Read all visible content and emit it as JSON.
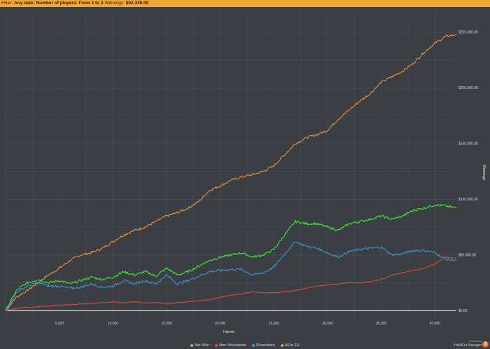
{
  "filter": {
    "prefix": "Filter:",
    "text": "Any date; Number of players: From 2 to 3",
    "winnings_label": "Winnings:",
    "winnings_value": "$92,326.00"
  },
  "brand": {
    "powered_by": "Powered by",
    "name": "HoldEm Manager",
    "logo": "2"
  },
  "colors": {
    "background": "#3b3f44",
    "filter_bar": "#f2a63a",
    "grid": "#4a4f55",
    "net_won": "#3ef23a",
    "non_showdown": "#e84a3c",
    "showdown": "#3d9ad9",
    "all_in_ev": "#f0983a",
    "zero_line": "#ffffff"
  },
  "chart_data": {
    "type": "line",
    "title": "",
    "xlabel": "Hands",
    "ylabel": "Winnings",
    "xlim": [
      0,
      42000
    ],
    "ylim": [
      -8000,
      270000
    ],
    "x_ticks": [
      5000,
      10000,
      15000,
      20000,
      25000,
      30000,
      35000,
      40000
    ],
    "x_tick_labels": [
      "5,000",
      "10,000",
      "15,000",
      "20,000",
      "25,000",
      "30,000",
      "35,000",
      "40,000"
    ],
    "y_ticks": [
      0,
      50000,
      100000,
      150000,
      200000,
      250000
    ],
    "y_tick_labels": [
      "$0.00",
      "$50,000.00",
      "$100,000.00",
      "$150,000.00",
      "$200,000.00",
      "$250,000.00"
    ],
    "y_axis_position": "right",
    "grid": true,
    "legend_position": "bottom-center",
    "series": [
      {
        "name": "Net Won",
        "color": "#3ef23a",
        "points": [
          [
            0,
            0
          ],
          [
            1000,
            18000
          ],
          [
            2000,
            25000
          ],
          [
            3000,
            28000
          ],
          [
            4000,
            25000
          ],
          [
            5000,
            27000
          ],
          [
            6000,
            24000
          ],
          [
            7000,
            27000
          ],
          [
            8000,
            30000
          ],
          [
            9000,
            28000
          ],
          [
            10000,
            30000
          ],
          [
            11000,
            35000
          ],
          [
            12000,
            32000
          ],
          [
            13000,
            35000
          ],
          [
            14000,
            31000
          ],
          [
            15000,
            38000
          ],
          [
            16000,
            32000
          ],
          [
            17000,
            35000
          ],
          [
            18000,
            40000
          ],
          [
            19000,
            45000
          ],
          [
            20000,
            48000
          ],
          [
            21000,
            50000
          ],
          [
            22000,
            52000
          ],
          [
            23000,
            48000
          ],
          [
            24000,
            50000
          ],
          [
            25000,
            55000
          ],
          [
            26000,
            68000
          ],
          [
            27000,
            80000
          ],
          [
            28000,
            78000
          ],
          [
            29000,
            78000
          ],
          [
            30000,
            75000
          ],
          [
            31000,
            72000
          ],
          [
            32000,
            78000
          ],
          [
            33000,
            80000
          ],
          [
            34000,
            82000
          ],
          [
            35000,
            85000
          ],
          [
            36000,
            82000
          ],
          [
            37000,
            85000
          ],
          [
            38000,
            90000
          ],
          [
            39000,
            92000
          ],
          [
            40000,
            95000
          ],
          [
            41000,
            94000
          ],
          [
            42000,
            92000
          ]
        ]
      },
      {
        "name": "Non Showdown",
        "color": "#e84a3c",
        "points": [
          [
            0,
            0
          ],
          [
            1000,
            2000
          ],
          [
            2000,
            3000
          ],
          [
            3000,
            3500
          ],
          [
            4000,
            4000
          ],
          [
            5000,
            5000
          ],
          [
            6000,
            5500
          ],
          [
            7000,
            6000
          ],
          [
            8000,
            6500
          ],
          [
            9000,
            7000
          ],
          [
            10000,
            8000
          ],
          [
            11000,
            7000
          ],
          [
            12000,
            8000
          ],
          [
            13000,
            7000
          ],
          [
            14000,
            7500
          ],
          [
            15000,
            6000
          ],
          [
            16000,
            7000
          ],
          [
            17000,
            8000
          ],
          [
            18000,
            9000
          ],
          [
            19000,
            10000
          ],
          [
            20000,
            12000
          ],
          [
            21000,
            14000
          ],
          [
            22000,
            15000
          ],
          [
            23000,
            17000
          ],
          [
            24000,
            16000
          ],
          [
            25000,
            16000
          ],
          [
            26000,
            17000
          ],
          [
            27000,
            18000
          ],
          [
            28000,
            20000
          ],
          [
            29000,
            22000
          ],
          [
            30000,
            23000
          ],
          [
            31000,
            24000
          ],
          [
            32000,
            25000
          ],
          [
            33000,
            25000
          ],
          [
            34000,
            26000
          ],
          [
            35000,
            28000
          ],
          [
            36000,
            32000
          ],
          [
            37000,
            34000
          ],
          [
            38000,
            36000
          ],
          [
            39000,
            38000
          ],
          [
            40000,
            42000
          ],
          [
            41000,
            48000
          ],
          [
            42000,
            47000
          ]
        ]
      },
      {
        "name": "Showdown",
        "color": "#3d9ad9",
        "points": [
          [
            0,
            0
          ],
          [
            1000,
            16000
          ],
          [
            2000,
            22000
          ],
          [
            3000,
            25000
          ],
          [
            4000,
            22000
          ],
          [
            5000,
            22000
          ],
          [
            6000,
            20000
          ],
          [
            7000,
            21000
          ],
          [
            8000,
            24000
          ],
          [
            9000,
            21000
          ],
          [
            10000,
            22000
          ],
          [
            11000,
            27000
          ],
          [
            12000,
            24000
          ],
          [
            13000,
            27000
          ],
          [
            14000,
            24000
          ],
          [
            15000,
            32000
          ],
          [
            16000,
            24000
          ],
          [
            17000,
            27000
          ],
          [
            18000,
            31000
          ],
          [
            19000,
            35000
          ],
          [
            20000,
            36000
          ],
          [
            21000,
            37000
          ],
          [
            22000,
            37000
          ],
          [
            23000,
            32000
          ],
          [
            24000,
            34000
          ],
          [
            25000,
            39000
          ],
          [
            26000,
            51000
          ],
          [
            27000,
            62000
          ],
          [
            28000,
            58000
          ],
          [
            29000,
            56000
          ],
          [
            30000,
            52000
          ],
          [
            31000,
            48000
          ],
          [
            32000,
            53000
          ],
          [
            33000,
            55000
          ],
          [
            34000,
            56000
          ],
          [
            35000,
            57000
          ],
          [
            36000,
            50000
          ],
          [
            37000,
            51000
          ],
          [
            38000,
            54000
          ],
          [
            39000,
            54000
          ],
          [
            40000,
            52000
          ],
          [
            41000,
            46000
          ],
          [
            42000,
            45000
          ]
        ]
      },
      {
        "name": "All-In EV",
        "color": "#f0983a",
        "points": [
          [
            0,
            0
          ],
          [
            1000,
            12000
          ],
          [
            2000,
            18000
          ],
          [
            3000,
            25000
          ],
          [
            4000,
            32000
          ],
          [
            5000,
            38000
          ],
          [
            6000,
            45000
          ],
          [
            7000,
            50000
          ],
          [
            8000,
            52000
          ],
          [
            9000,
            56000
          ],
          [
            10000,
            62000
          ],
          [
            11000,
            68000
          ],
          [
            12000,
            72000
          ],
          [
            13000,
            75000
          ],
          [
            14000,
            80000
          ],
          [
            15000,
            85000
          ],
          [
            16000,
            88000
          ],
          [
            17000,
            92000
          ],
          [
            18000,
            98000
          ],
          [
            19000,
            108000
          ],
          [
            20000,
            112000
          ],
          [
            21000,
            117000
          ],
          [
            22000,
            120000
          ],
          [
            23000,
            122000
          ],
          [
            24000,
            125000
          ],
          [
            25000,
            130000
          ],
          [
            26000,
            140000
          ],
          [
            27000,
            150000
          ],
          [
            28000,
            155000
          ],
          [
            29000,
            158000
          ],
          [
            30000,
            162000
          ],
          [
            31000,
            172000
          ],
          [
            32000,
            180000
          ],
          [
            33000,
            188000
          ],
          [
            34000,
            195000
          ],
          [
            35000,
            205000
          ],
          [
            36000,
            210000
          ],
          [
            37000,
            215000
          ],
          [
            38000,
            222000
          ],
          [
            39000,
            232000
          ],
          [
            40000,
            240000
          ],
          [
            41000,
            246000
          ],
          [
            42000,
            248000
          ]
        ]
      }
    ]
  }
}
